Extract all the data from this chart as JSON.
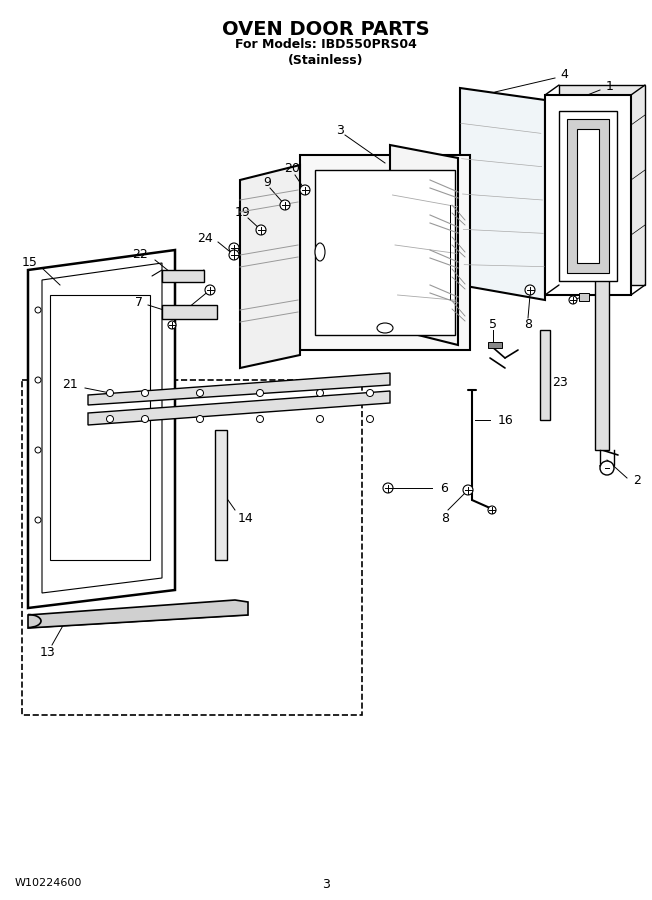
{
  "title": "OVEN DOOR PARTS",
  "subtitle1": "For Models: IBD550PRS04",
  "subtitle2": "(Stainless)",
  "footer_left": "W10224600",
  "footer_center": "3",
  "bg_color": "#ffffff",
  "line_color": "#000000"
}
